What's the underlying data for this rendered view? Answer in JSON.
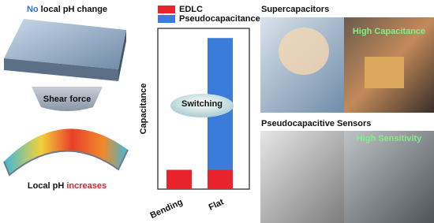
{
  "left_panel": {
    "top_label_lead": "No",
    "top_label_rest": " local pH change",
    "middle_label": "Shear force",
    "bottom_label_lead": "Local pH ",
    "bottom_label_rest": "increases"
  },
  "chart_data": {
    "type": "bar",
    "stacked": true,
    "y_label": "Capacitance",
    "annotation": "Switching",
    "categories": [
      "Bending",
      "Flat"
    ],
    "series": [
      {
        "name": "EDLC",
        "color": "#e8232b",
        "values": [
          12,
          12
        ]
      },
      {
        "name": "Pseudocapacitance",
        "color": "#3b7bd9",
        "values": [
          0,
          82
        ]
      }
    ],
    "ylim": [
      0,
      100
    ]
  },
  "right_panel": {
    "top_title": "Supercapacitors",
    "top_badge": "High Capacitance",
    "bottom_title": "Pseudocapacitive Sensors",
    "bottom_badge": "High Sensitivity"
  }
}
